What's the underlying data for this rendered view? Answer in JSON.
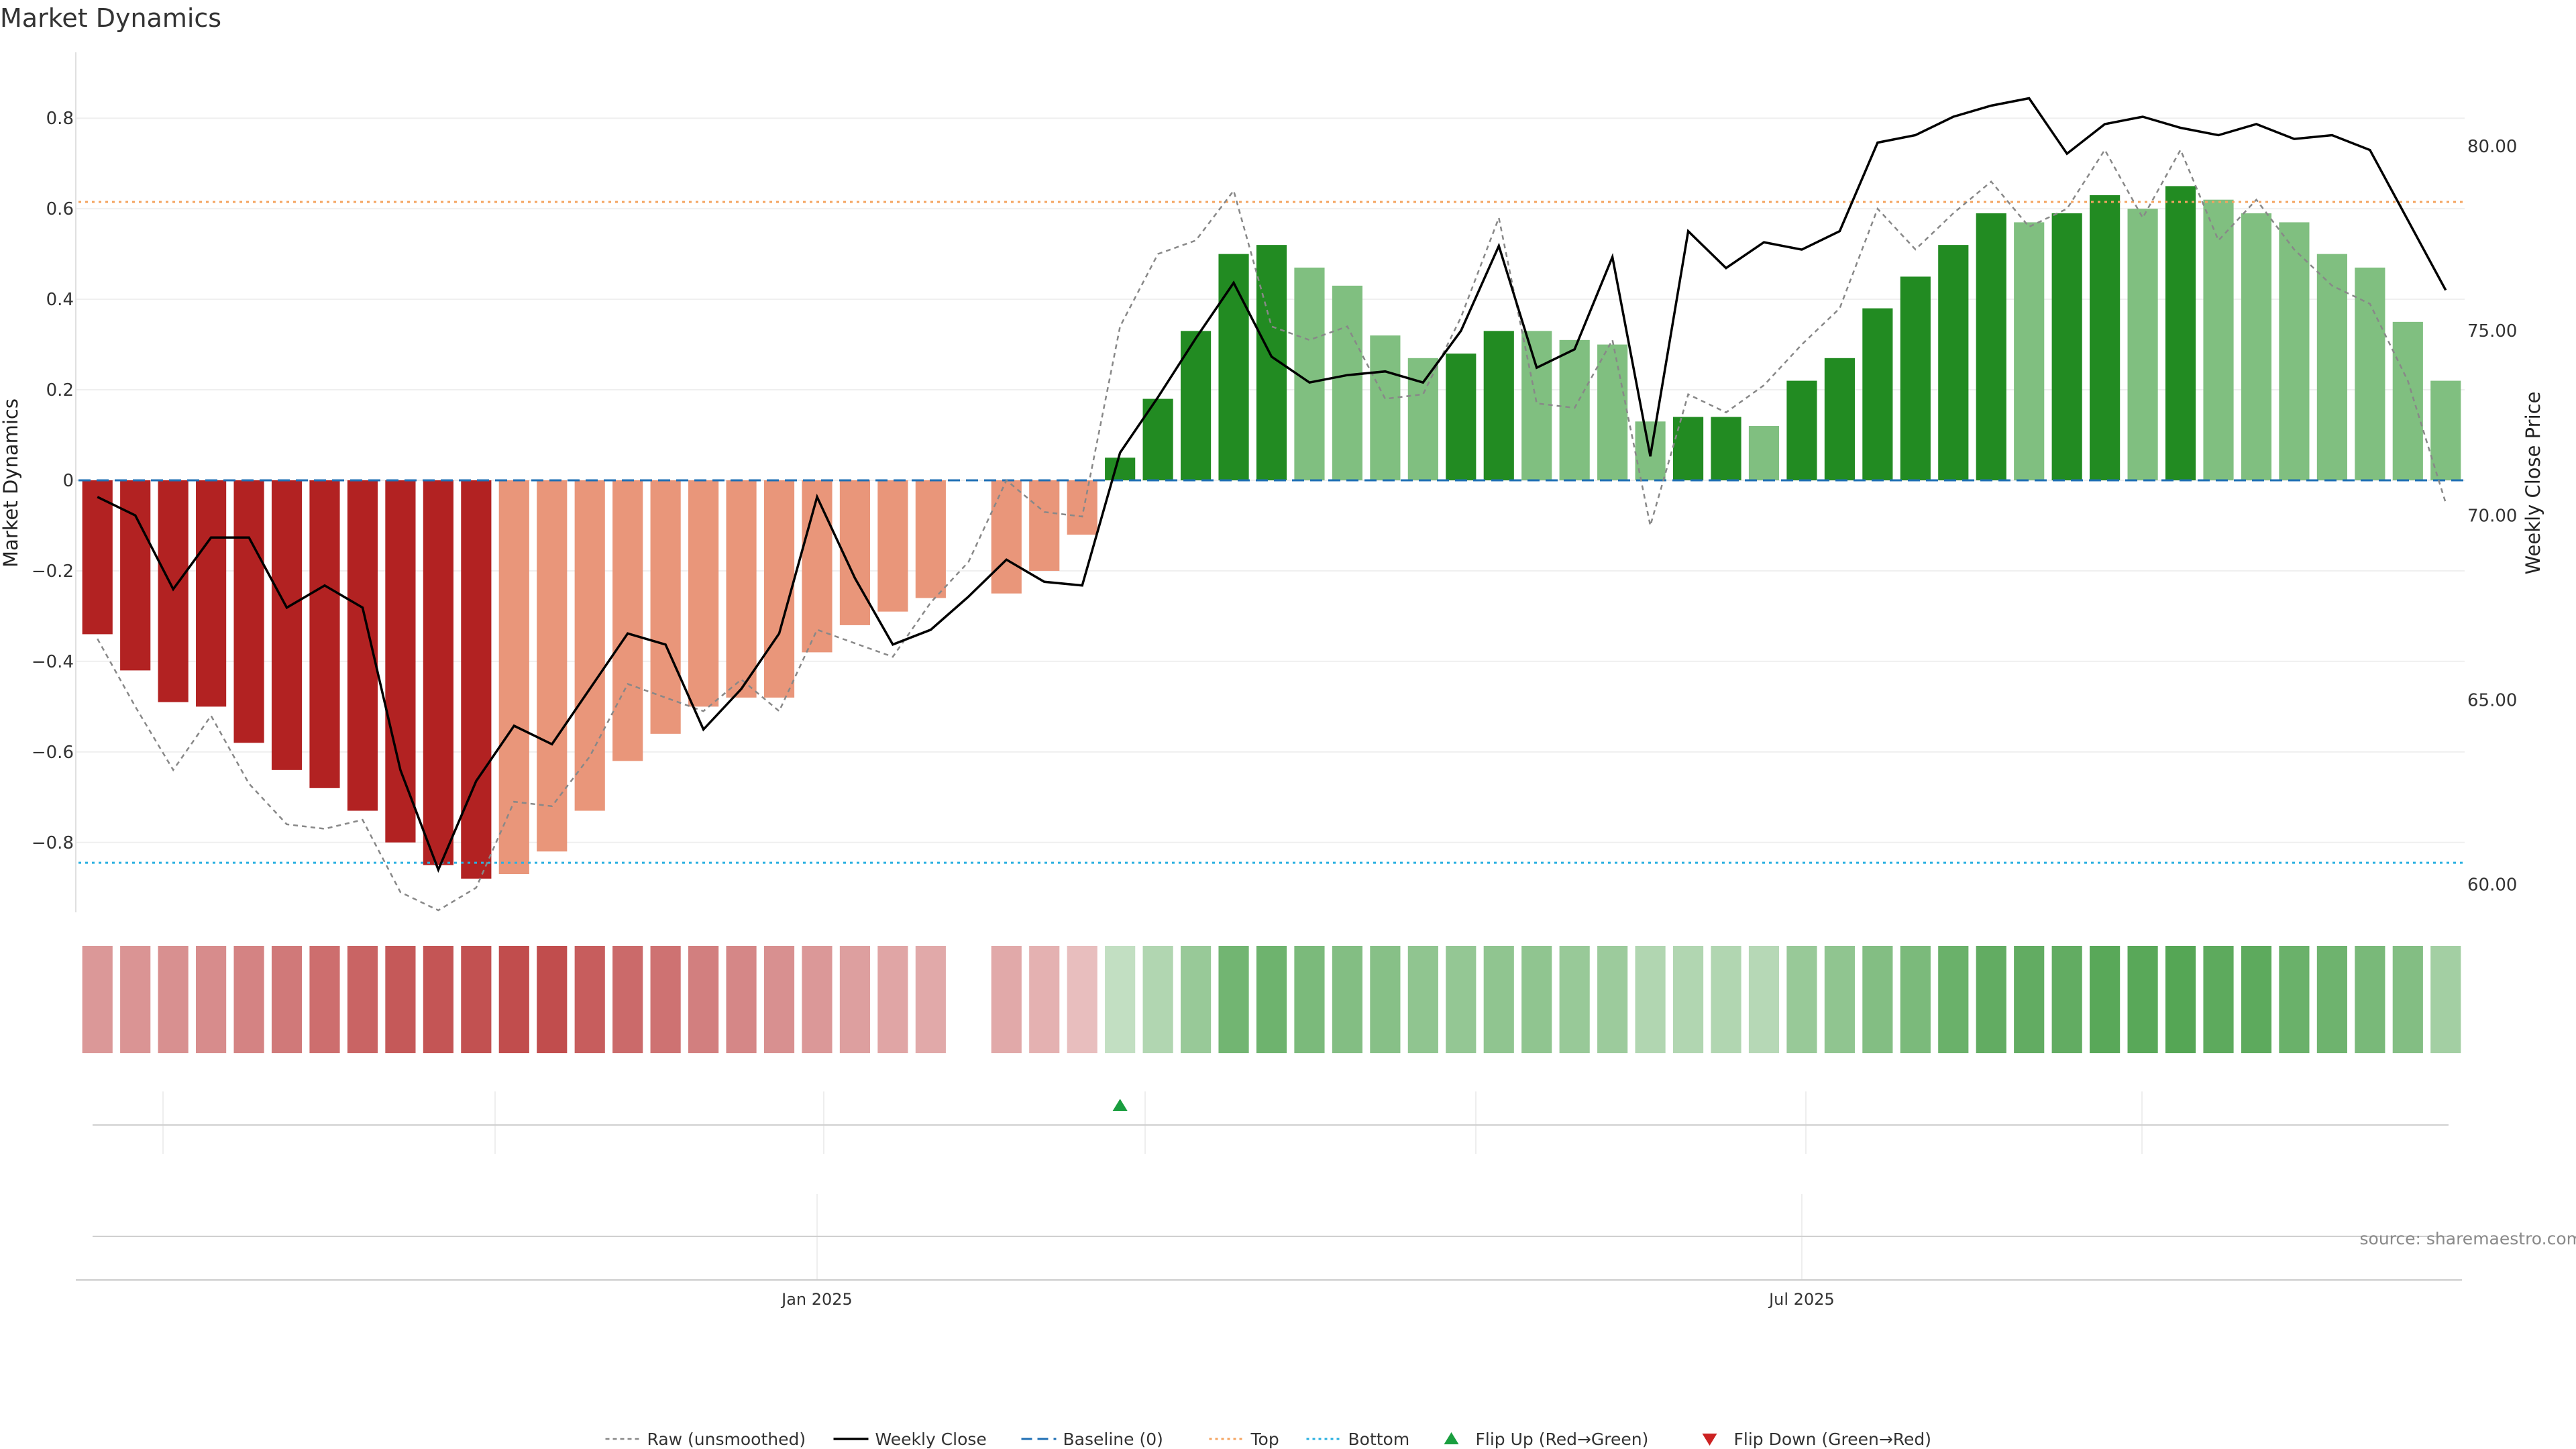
{
  "title": "Market Dynamics",
  "source": "source: sharemaestro.com",
  "colors": {
    "strong_up": "#228b22",
    "weak_up": "#80bf80",
    "strong_down": "#b22222",
    "weak_down": "#e9967a",
    "close_line": "#000000",
    "raw_line": "#888888",
    "baseline": "#1f6fb4",
    "top": "#f4a460",
    "bottom": "#2ab0e0",
    "flip_up": "#1a9e3f",
    "flip_down": "#cc2222"
  },
  "chart_data": {
    "type": "bar",
    "title": "Market Dynamics",
    "ylabel": "Market Dynamics",
    "y2label": "Weekly Close Price",
    "ylim": [
      -0.95,
      0.95
    ],
    "y2lim": [
      59.3,
      82.6
    ],
    "yticks": [
      0.8,
      0.6,
      0.4,
      0.2,
      0,
      -0.2,
      -0.4,
      -0.6,
      -0.8
    ],
    "ytick_labels": [
      "0.8",
      "0.6",
      "0.4",
      "0.2",
      "0",
      "−0.2",
      "−0.4",
      "−0.6",
      "−0.8"
    ],
    "y2ticks": [
      80,
      75,
      70,
      65,
      60
    ],
    "y2tick_labels": [
      "80.00",
      "75.00",
      "70.00",
      "65.00",
      "60.00"
    ],
    "xtick_labels": [
      {
        "label": "Jan 2025",
        "index": 19.5
      },
      {
        "label": "Jul 2025",
        "index": 45.5
      }
    ],
    "levels": {
      "baseline": 0,
      "top": 0.615,
      "bottom": -0.845
    },
    "series": [
      {
        "name": "Market Dynamics",
        "values": [
          -0.34,
          -0.42,
          -0.49,
          -0.5,
          -0.58,
          -0.64,
          -0.68,
          -0.73,
          -0.8,
          -0.85,
          -0.88,
          -0.87,
          -0.82,
          -0.73,
          -0.62,
          -0.56,
          -0.5,
          -0.48,
          -0.48,
          -0.38,
          -0.32,
          -0.29,
          -0.26,
          null,
          -0.25,
          -0.2,
          -0.12,
          0.05,
          0.18,
          0.33,
          0.5,
          0.52,
          0.47,
          0.43,
          0.32,
          0.27,
          0.28,
          0.33,
          0.33,
          0.31,
          0.3,
          0.13,
          0.14,
          0.14,
          0.12,
          0.22,
          0.27,
          0.38,
          0.45,
          0.52,
          0.59,
          0.57,
          0.59,
          0.63,
          0.6,
          0.65,
          0.62,
          0.59,
          0.57,
          0.5,
          0.47,
          0.35,
          0.22
        ],
        "strength": [
          "strong",
          "strong",
          "strong",
          "strong",
          "strong",
          "strong",
          "strong",
          "strong",
          "strong",
          "strong",
          "strong",
          "weak",
          "weak",
          "weak",
          "weak",
          "weak",
          "weak",
          "weak",
          "weak",
          "weak",
          "weak",
          "weak",
          "weak",
          "none",
          "weak",
          "weak",
          "weak",
          "strong",
          "strong",
          "strong",
          "strong",
          "strong",
          "weak",
          "weak",
          "weak",
          "weak",
          "strong",
          "strong",
          "weak",
          "weak",
          "weak",
          "weak",
          "strong",
          "strong",
          "weak",
          "strong",
          "strong",
          "strong",
          "strong",
          "strong",
          "strong",
          "weak",
          "strong",
          "strong",
          "weak",
          "strong",
          "weak",
          "weak",
          "weak",
          "weak",
          "weak",
          "weak",
          "weak"
        ]
      },
      {
        "name": "Raw (unsmoothed)",
        "values": [
          -0.35,
          -0.5,
          -0.64,
          -0.52,
          -0.67,
          -0.76,
          -0.77,
          -0.75,
          -0.91,
          -0.95,
          -0.9,
          -0.71,
          -0.72,
          -0.61,
          -0.45,
          -0.48,
          -0.51,
          -0.44,
          -0.51,
          -0.33,
          -0.36,
          -0.39,
          -0.27,
          -0.18,
          0.0,
          -0.07,
          -0.08,
          0.34,
          0.5,
          0.53,
          0.64,
          0.34,
          0.31,
          0.34,
          0.18,
          0.19,
          0.36,
          0.58,
          0.17,
          0.16,
          0.31,
          -0.1,
          0.19,
          0.15,
          0.21,
          0.3,
          0.38,
          0.6,
          0.51,
          0.59,
          0.66,
          0.56,
          0.6,
          0.73,
          0.58,
          0.73,
          0.53,
          0.62,
          0.51,
          0.43,
          0.39,
          0.22,
          -0.05
        ]
      },
      {
        "name": "Weekly Close",
        "axis": "right",
        "values": [
          70.5,
          70.0,
          68.0,
          69.4,
          69.4,
          67.5,
          68.1,
          67.5,
          63.1,
          60.4,
          62.8,
          64.3,
          63.8,
          65.3,
          66.8,
          66.5,
          64.2,
          65.3,
          66.8,
          70.5,
          68.3,
          66.5,
          66.9,
          67.8,
          68.8,
          68.2,
          68.1,
          71.7,
          73.2,
          74.8,
          76.3,
          74.3,
          73.6,
          73.8,
          73.9,
          73.6,
          75.0,
          77.3,
          74.0,
          74.5,
          77.0,
          71.6,
          77.7,
          76.7,
          77.4,
          77.2,
          77.7,
          80.1,
          80.3,
          80.8,
          81.1,
          81.3,
          79.8,
          80.6,
          80.8,
          80.5,
          80.3,
          80.6,
          80.2,
          80.3,
          79.9,
          78.0,
          76.1
        ]
      },
      {
        "name": "Baseline (0)"
      },
      {
        "name": "Top"
      },
      {
        "name": "Bottom"
      },
      {
        "name": "Flip Up (Red→Green)",
        "flip_indices": [
          27
        ]
      },
      {
        "name": "Flip Down (Green→Red)",
        "flip_indices": []
      }
    ],
    "heat_strip": {
      "values": [
        0.3,
        0.32,
        0.34,
        0.36,
        0.4,
        0.45,
        0.5,
        0.55,
        0.6,
        0.62,
        0.64,
        0.66,
        0.66,
        0.58,
        0.52,
        0.48,
        0.42,
        0.38,
        0.34,
        0.3,
        0.27,
        0.24,
        0.22,
        null,
        0.22,
        0.18,
        0.12,
        0.1,
        0.18,
        0.3,
        0.48,
        0.5,
        0.44,
        0.4,
        0.38,
        0.34,
        0.32,
        0.34,
        0.34,
        0.3,
        0.28,
        0.18,
        0.18,
        0.18,
        0.16,
        0.3,
        0.34,
        0.4,
        0.44,
        0.52,
        0.56,
        0.56,
        0.56,
        0.6,
        0.6,
        0.62,
        0.58,
        0.58,
        0.52,
        0.5,
        0.45,
        0.4,
        0.25
      ],
      "direction": [
        "down",
        "down",
        "down",
        "down",
        "down",
        "down",
        "down",
        "down",
        "down",
        "down",
        "down",
        "down",
        "down",
        "down",
        "down",
        "down",
        "down",
        "down",
        "down",
        "down",
        "down",
        "down",
        "down",
        "none",
        "down",
        "down",
        "down",
        "up",
        "up",
        "up",
        "up",
        "up",
        "up",
        "up",
        "up",
        "up",
        "up",
        "up",
        "up",
        "up",
        "up",
        "up",
        "up",
        "up",
        "up",
        "up",
        "up",
        "up",
        "up",
        "up",
        "up",
        "up",
        "up",
        "up",
        "up",
        "up",
        "up",
        "up",
        "up",
        "up",
        "up",
        "up",
        "up"
      ]
    },
    "legend": {
      "placement": "bottom-center"
    }
  }
}
